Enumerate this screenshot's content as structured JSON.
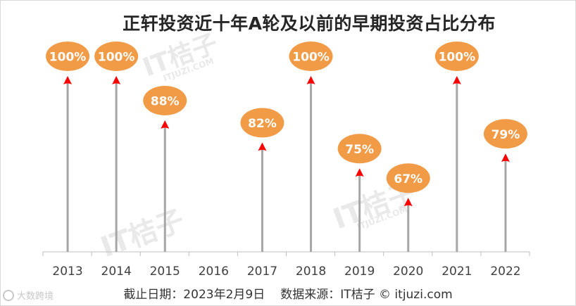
{
  "title": "正轩投资近十年A轮及以前的早期投资占比分布",
  "footer": {
    "date_text": "截止日期：2023年2月9日",
    "source_text": "数据来源：IT桔子 © itjuzi.com"
  },
  "watermark": {
    "brand": "IT桔子",
    "url": "ITJUZI.COM",
    "source_badge": "大数跨境"
  },
  "colors": {
    "bubble": "#F19B47",
    "arrow": "#FF0000",
    "stem": "#A6A6A6",
    "axis": "#BFBFBF",
    "bubble_text": "#FFFFFF"
  },
  "chart_data": {
    "type": "lollipop",
    "title": "正轩投资近十年A轮及以前的早期投资占比分布",
    "categories": [
      "2013",
      "2014",
      "2015",
      "2016",
      "2017",
      "2018",
      "2019",
      "2020",
      "2021",
      "2022"
    ],
    "values": [
      100,
      100,
      88,
      null,
      82,
      100,
      75,
      67,
      100,
      79
    ],
    "labels": [
      "100%",
      "100%",
      "88%",
      "",
      "82%",
      "100%",
      "75%",
      "67%",
      "100%",
      "79%"
    ],
    "unit": "%",
    "ylim": [
      0,
      100
    ],
    "grid": false,
    "legend": "none"
  }
}
